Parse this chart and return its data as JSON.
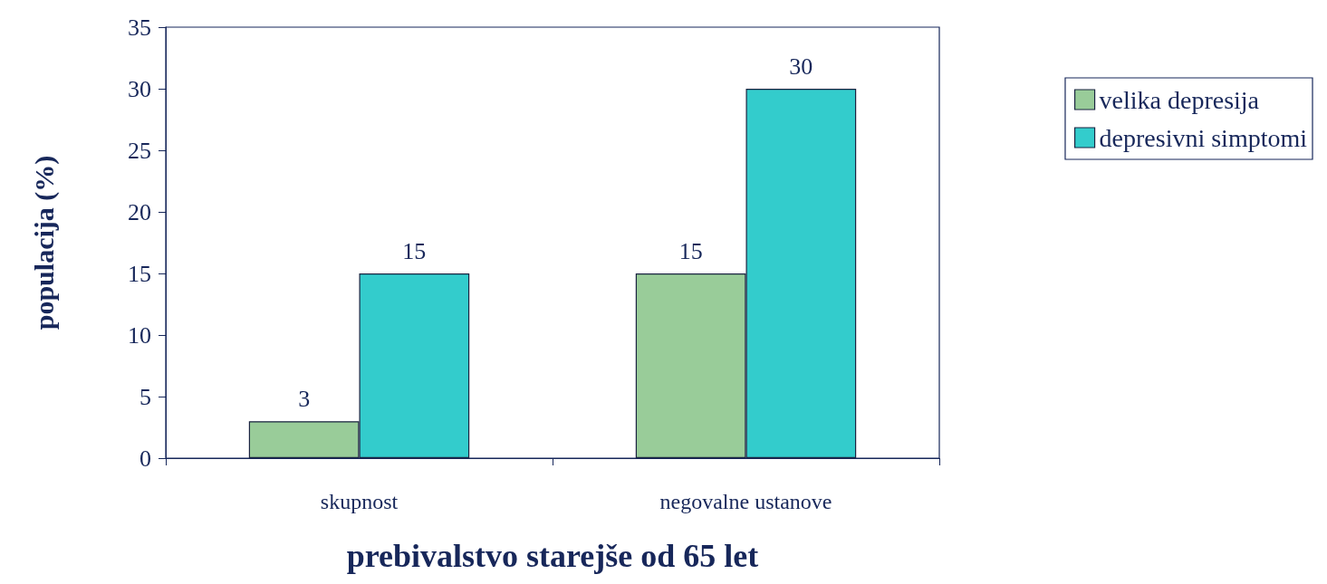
{
  "chart_data": {
    "type": "bar",
    "xlabel": "prebivalstvo starejše od 65 let",
    "ylabel": "populacija (%)",
    "categories": [
      "skupnost",
      "negovalne ustanove"
    ],
    "series": [
      {
        "name": "velika depresija",
        "color": "#99cc99",
        "values": [
          3,
          15
        ]
      },
      {
        "name": "depresivni simptomi",
        "color": "#33cccc",
        "values": [
          15,
          30
        ]
      }
    ],
    "ylim": [
      0,
      35
    ],
    "yticks": [
      0,
      5,
      10,
      15,
      20,
      25,
      30,
      35
    ],
    "grid": false,
    "legend": "top right",
    "data_labels": true
  }
}
